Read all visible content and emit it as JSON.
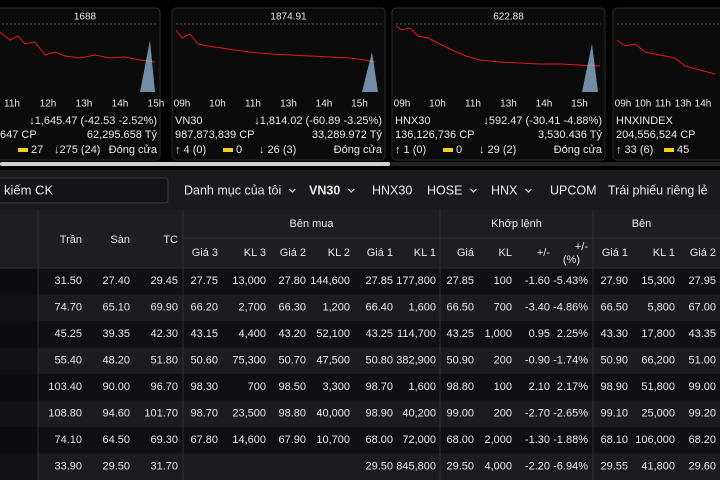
{
  "indices": [
    {
      "peak": "1688",
      "times": [
        "11h",
        "12h",
        "13h",
        "14h",
        "15h"
      ],
      "change": "↓1,645.47 (-42.53 -2.52%)",
      "volume": "647 CP",
      "value": "62,295.658 Tỷ",
      "ceiling": "27",
      "down": "↓275 (24)",
      "status": "Đóng cửa"
    },
    {
      "name": "VN30",
      "peak": "1874.91",
      "times": [
        "09h",
        "10h",
        "11h",
        "13h",
        "14h",
        "15h"
      ],
      "change": "↓1,814.02 (-60.89 -3.25%)",
      "volume": "987,873,839 CP",
      "value": "33,289.972 Tỷ",
      "up": "↑ 4 (0)",
      "ceiling": "0",
      "down": "↓ 26 (3)",
      "status": "Đóng cửa"
    },
    {
      "name": "HNX30",
      "peak": "622.88",
      "times": [
        "09h",
        "10h",
        "11h",
        "13h",
        "14h",
        "15h"
      ],
      "change": "↓592.47 (-30.41 -4.88%)",
      "volume": "136,126,736 CP",
      "value": "3,530.436 Tỷ",
      "up": "↑ 1 (0)",
      "ceiling": "0",
      "down": "↓ 29 (2)",
      "status": "Đóng cửa"
    },
    {
      "name": "HNXINDEX",
      "times": [
        "09h",
        "10h",
        "11h",
        "13h",
        "14h"
      ],
      "volume": "204,556,524 CP",
      "up": "↑ 33 (6)",
      "ceiling": "45"
    }
  ],
  "search": "kiếm CK",
  "tabs": [
    "Danh mục của tôi",
    "VN30",
    "HNX30",
    "HOSE",
    "HNX",
    "UPCOM",
    "Trái phiếu riêng lẻ"
  ],
  "table": {
    "columns": [
      "Trần",
      "Sàn",
      "TC"
    ],
    "groups": [
      {
        "title": "Bên mua",
        "columns": [
          "Giá 3",
          "KL 3",
          "Giá 2",
          "KL 2",
          "Giá 1",
          "KL 1"
        ]
      },
      {
        "title": "Khớp lệnh",
        "columns": [
          "Giá",
          "KL",
          "+/-",
          "+/-\n(%)"
        ]
      },
      {
        "title": "Bên",
        "columns": [
          "Giá 1",
          "KL 1",
          "Giá 2"
        ]
      }
    ],
    "rows": [
      [
        "31.50",
        "27.40",
        "29.45",
        "27.75",
        "13,000",
        "27.80",
        "144,600",
        "27.85",
        "177,800",
        "27.85",
        "100",
        "-1.60",
        "-5.43%",
        "27.90",
        "15,300",
        "27.95"
      ],
      [
        "74.70",
        "65.10",
        "69.90",
        "66.20",
        "2,700",
        "66.30",
        "1,200",
        "66.40",
        "1,600",
        "66.50",
        "700",
        "-3.40",
        "-4.86%",
        "66.50",
        "5,800",
        "67.00"
      ],
      [
        "45.25",
        "39.35",
        "42.30",
        "43.15",
        "4,400",
        "43.20",
        "52,100",
        "43.25",
        "114,700",
        "43.25",
        "1,000",
        "0.95",
        "2.25%",
        "43.30",
        "17,800",
        "43.35"
      ],
      [
        "55.40",
        "48.20",
        "51.80",
        "50.60",
        "75,300",
        "50.70",
        "47,500",
        "50.80",
        "382,900",
        "50.90",
        "200",
        "-0.90",
        "-1.74%",
        "50.90",
        "66,200",
        "51.00"
      ],
      [
        "103.40",
        "90.00",
        "96.70",
        "98.30",
        "700",
        "98.50",
        "3,300",
        "98.70",
        "1,600",
        "98.80",
        "100",
        "2.10",
        "2.17%",
        "98.90",
        "51,800",
        "99.00"
      ],
      [
        "108.80",
        "94.60",
        "101.70",
        "98.70",
        "23,500",
        "98.80",
        "40,000",
        "98.90",
        "40,200",
        "99.00",
        "200",
        "-2.70",
        "-2.65%",
        "99.10",
        "25,000",
        "99.20"
      ],
      [
        "74.10",
        "64.50",
        "69.30",
        "67.80",
        "14,600",
        "67.90",
        "10,700",
        "68.00",
        "72,000",
        "68.00",
        "2,000",
        "-1.30",
        "-1.88%",
        "68.10",
        "106,000",
        "68.20"
      ],
      [
        "33.90",
        "29.50",
        "31.70",
        null,
        null,
        null,
        null,
        "29.50",
        "845,800",
        "29.50",
        "4,000",
        "-2.20",
        "-6.94%",
        "29.55",
        "41,800",
        "29.60"
      ]
    ]
  }
}
